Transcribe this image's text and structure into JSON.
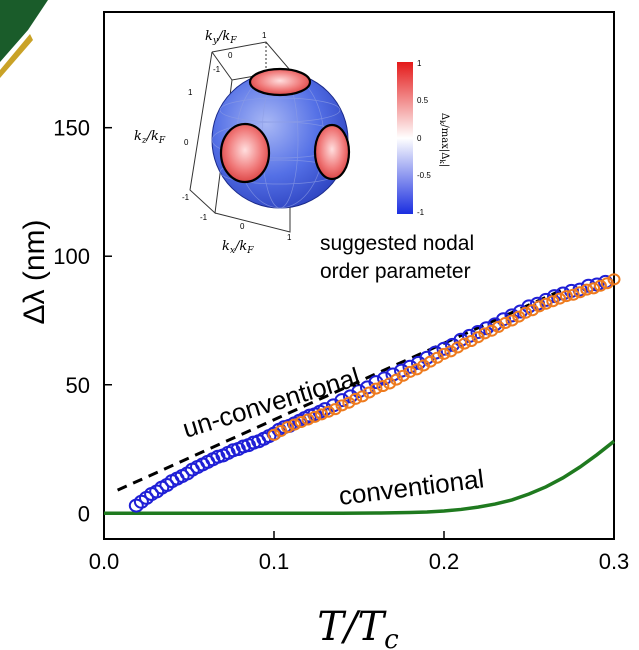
{
  "colors": {
    "conventional": "#1f7a1f",
    "unconventional": "#000000",
    "series_blue": "#1f1fd6",
    "series_orange": "#ee7b1e",
    "badge": "#1a5c2a"
  },
  "annotations": {
    "unconventional_label": "un-conventional",
    "conventional_label": "conventional",
    "inset_caption_line1": "suggested nodal",
    "inset_caption_line2": "order parameter"
  },
  "inset": {
    "ky_label": "k_y/k_F",
    "kz_label": "k_z/k_F",
    "kx_label": "k_x/k_F",
    "ky_ticks": [
      "-1",
      "0",
      "1"
    ],
    "kz_ticks": [
      "-1",
      "0",
      "1"
    ],
    "kx_ticks": [
      "-1",
      "0",
      "1"
    ],
    "colorbar_label": "Δ_k/max|Δ_k|",
    "colorbar_ticks": [
      "1",
      "0.5",
      "0",
      "-0.5",
      "-1"
    ],
    "colormap": "blue-white-red"
  },
  "chart_data": {
    "type": "scatter",
    "xlabel": "T/T_c",
    "ylabel": "Δλ (nm)",
    "xlim": [
      0.0,
      0.3
    ],
    "ylim": [
      -10,
      195
    ],
    "xticks": [
      "0.0",
      "0.1",
      "0.2",
      "0.3"
    ],
    "yticks": [
      "0",
      "50",
      "100",
      "150"
    ],
    "xtick_values": [
      0.0,
      0.1,
      0.2,
      0.3
    ],
    "ytick_values": [
      0,
      50,
      100,
      150
    ],
    "grid": false,
    "series": [
      {
        "marker": "open-circle",
        "color": "#1f1fd6",
        "x": [
          0.019,
          0.022,
          0.025,
          0.028,
          0.031,
          0.034,
          0.037,
          0.04,
          0.043,
          0.046,
          0.049,
          0.052,
          0.055,
          0.058,
          0.061,
          0.064,
          0.067,
          0.07,
          0.073,
          0.076,
          0.079,
          0.082,
          0.085,
          0.088,
          0.091,
          0.094,
          0.097,
          0.1,
          0.103,
          0.106,
          0.109,
          0.112,
          0.115,
          0.118,
          0.121,
          0.124,
          0.127,
          0.13,
          0.135,
          0.14,
          0.145,
          0.15,
          0.155,
          0.16,
          0.165,
          0.17,
          0.175,
          0.18,
          0.185,
          0.19,
          0.195,
          0.2,
          0.205,
          0.21,
          0.215,
          0.22,
          0.225,
          0.23,
          0.235,
          0.24,
          0.245,
          0.25,
          0.255,
          0.26,
          0.265,
          0.27,
          0.275,
          0.28,
          0.285,
          0.29,
          0.295
        ],
        "y": [
          3.0,
          4.5,
          6.0,
          7.5,
          8.5,
          10.0,
          11.0,
          12.5,
          13.5,
          14.5,
          15.5,
          17.0,
          18.0,
          19.0,
          20.0,
          21.0,
          22.0,
          22.5,
          23.5,
          24.5,
          25.0,
          26.0,
          26.5,
          27.5,
          28.0,
          29.0,
          30.0,
          31.0,
          32.5,
          33.5,
          34.0,
          35.0,
          36.0,
          37.0,
          38.0,
          38.5,
          39.5,
          40.5,
          42.0,
          44.0,
          45.5,
          47.5,
          49.0,
          51.0,
          52.5,
          54.0,
          55.5,
          57.0,
          58.5,
          60.5,
          62.5,
          64.0,
          65.5,
          67.5,
          69.0,
          70.5,
          72.0,
          73.5,
          75.5,
          77.0,
          78.5,
          80.5,
          81.5,
          83.0,
          84.5,
          85.5,
          86.5,
          87.0,
          88.5,
          89.0,
          90.0
        ]
      },
      {
        "marker": "open-circle",
        "color": "#ee7b1e",
        "x": [
          0.1,
          0.104,
          0.108,
          0.112,
          0.116,
          0.12,
          0.124,
          0.128,
          0.132,
          0.136,
          0.14,
          0.144,
          0.148,
          0.152,
          0.156,
          0.16,
          0.164,
          0.168,
          0.172,
          0.176,
          0.18,
          0.184,
          0.188,
          0.192,
          0.196,
          0.2,
          0.204,
          0.208,
          0.212,
          0.216,
          0.22,
          0.224,
          0.228,
          0.232,
          0.236,
          0.24,
          0.244,
          0.248,
          0.252,
          0.256,
          0.26,
          0.264,
          0.268,
          0.272,
          0.276,
          0.28,
          0.284,
          0.288,
          0.292,
          0.296,
          0.3
        ],
        "y": [
          30.5,
          32.0,
          33.5,
          34.5,
          35.5,
          36.5,
          37.5,
          38.5,
          39.5,
          40.5,
          42.0,
          43.0,
          44.5,
          45.5,
          47.0,
          48.5,
          49.5,
          50.5,
          52.0,
          53.5,
          55.0,
          56.0,
          57.5,
          59.0,
          60.5,
          62.0,
          63.0,
          64.5,
          66.0,
          67.0,
          68.5,
          70.0,
          71.0,
          72.5,
          74.0,
          75.0,
          76.5,
          78.0,
          79.0,
          80.5,
          81.5,
          82.5,
          83.5,
          84.5,
          85.0,
          86.0,
          87.0,
          87.5,
          88.5,
          89.5,
          91.0
        ]
      },
      {
        "style": "dashed-line",
        "color": "#000000",
        "x": [
          0.008,
          0.27
        ],
        "y": [
          9,
          87
        ]
      },
      {
        "style": "solid-line",
        "color": "#1f7a1f",
        "x": [
          0.0,
          0.02,
          0.04,
          0.06,
          0.08,
          0.1,
          0.12,
          0.14,
          0.16,
          0.18,
          0.19,
          0.2,
          0.21,
          0.22,
          0.23,
          0.24,
          0.25,
          0.26,
          0.27,
          0.28,
          0.29,
          0.3
        ],
        "y": [
          0,
          0,
          0,
          0,
          0,
          0,
          0,
          0,
          0.1,
          0.3,
          0.5,
          0.9,
          1.5,
          2.4,
          3.6,
          5.2,
          7.5,
          10.3,
          13.8,
          18.0,
          22.8,
          28.0
        ]
      }
    ]
  }
}
